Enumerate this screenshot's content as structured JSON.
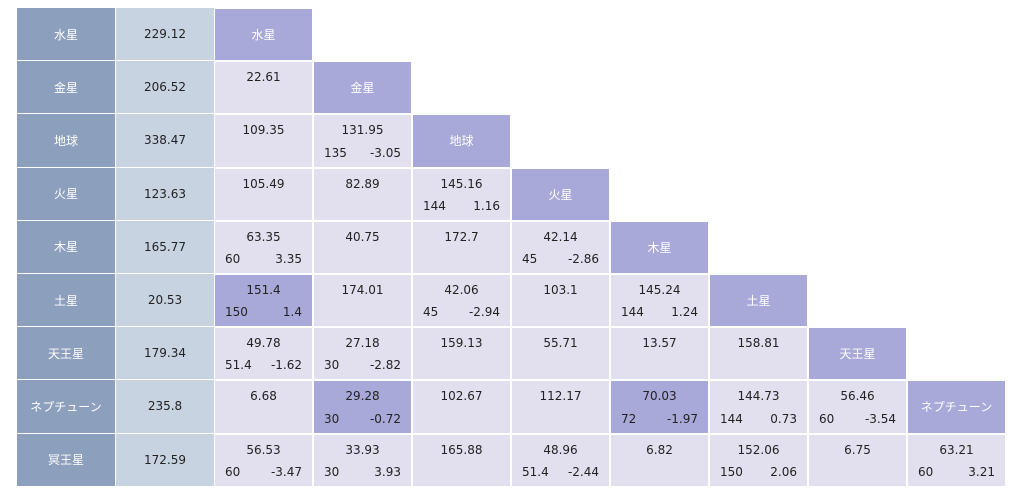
{
  "chart_data": {
    "type": "table",
    "planets": [
      "水星",
      "金星",
      "地球",
      "火星",
      "木星",
      "土星",
      "天王星",
      "ネプチューン",
      "冥王星"
    ],
    "row_totals": [
      "229.12",
      "206.52",
      "338.47",
      "123.63",
      "165.77",
      "20.53",
      "179.34",
      "235.8",
      "172.59"
    ],
    "diagonal_labels": [
      "水星",
      "金星",
      "地球",
      "火星",
      "木星",
      "土星",
      "天王星",
      "ネプチューン"
    ],
    "pairs": [
      {
        "row": 1,
        "col": 0,
        "value": "22.61",
        "a": "",
        "b": "",
        "highlight": false
      },
      {
        "row": 2,
        "col": 0,
        "value": "109.35",
        "a": "",
        "b": "",
        "highlight": false
      },
      {
        "row": 2,
        "col": 1,
        "value": "131.95",
        "a": "135",
        "b": "-3.05",
        "highlight": false
      },
      {
        "row": 3,
        "col": 0,
        "value": "105.49",
        "a": "",
        "b": "",
        "highlight": false
      },
      {
        "row": 3,
        "col": 1,
        "value": "82.89",
        "a": "",
        "b": "",
        "highlight": false
      },
      {
        "row": 3,
        "col": 2,
        "value": "145.16",
        "a": "144",
        "b": "1.16",
        "highlight": false
      },
      {
        "row": 4,
        "col": 0,
        "value": "63.35",
        "a": "60",
        "b": "3.35",
        "highlight": false
      },
      {
        "row": 4,
        "col": 1,
        "value": "40.75",
        "a": "",
        "b": "",
        "highlight": false
      },
      {
        "row": 4,
        "col": 2,
        "value": "172.7",
        "a": "",
        "b": "",
        "highlight": false
      },
      {
        "row": 4,
        "col": 3,
        "value": "42.14",
        "a": "45",
        "b": "-2.86",
        "highlight": false
      },
      {
        "row": 5,
        "col": 0,
        "value": "151.4",
        "a": "150",
        "b": "1.4",
        "highlight": true
      },
      {
        "row": 5,
        "col": 1,
        "value": "174.01",
        "a": "",
        "b": "",
        "highlight": false
      },
      {
        "row": 5,
        "col": 2,
        "value": "42.06",
        "a": "45",
        "b": "-2.94",
        "highlight": false
      },
      {
        "row": 5,
        "col": 3,
        "value": "103.1",
        "a": "",
        "b": "",
        "highlight": false
      },
      {
        "row": 5,
        "col": 4,
        "value": "145.24",
        "a": "144",
        "b": "1.24",
        "highlight": false
      },
      {
        "row": 6,
        "col": 0,
        "value": "49.78",
        "a": "51.4",
        "b": "-1.62",
        "highlight": false
      },
      {
        "row": 6,
        "col": 1,
        "value": "27.18",
        "a": "30",
        "b": "-2.82",
        "highlight": false
      },
      {
        "row": 6,
        "col": 2,
        "value": "159.13",
        "a": "",
        "b": "",
        "highlight": false
      },
      {
        "row": 6,
        "col": 3,
        "value": "55.71",
        "a": "",
        "b": "",
        "highlight": false
      },
      {
        "row": 6,
        "col": 4,
        "value": "13.57",
        "a": "",
        "b": "",
        "highlight": false
      },
      {
        "row": 6,
        "col": 5,
        "value": "158.81",
        "a": "",
        "b": "",
        "highlight": false
      },
      {
        "row": 7,
        "col": 0,
        "value": "6.68",
        "a": "",
        "b": "",
        "highlight": false
      },
      {
        "row": 7,
        "col": 1,
        "value": "29.28",
        "a": "30",
        "b": "-0.72",
        "highlight": true
      },
      {
        "row": 7,
        "col": 2,
        "value": "102.67",
        "a": "",
        "b": "",
        "highlight": false
      },
      {
        "row": 7,
        "col": 3,
        "value": "112.17",
        "a": "",
        "b": "",
        "highlight": false
      },
      {
        "row": 7,
        "col": 4,
        "value": "70.03",
        "a": "72",
        "b": "-1.97",
        "highlight": true
      },
      {
        "row": 7,
        "col": 5,
        "value": "144.73",
        "a": "144",
        "b": "0.73",
        "highlight": false
      },
      {
        "row": 7,
        "col": 6,
        "value": "56.46",
        "a": "60",
        "b": "-3.54",
        "highlight": false
      },
      {
        "row": 8,
        "col": 0,
        "value": "56.53",
        "a": "60",
        "b": "-3.47",
        "highlight": false
      },
      {
        "row": 8,
        "col": 1,
        "value": "33.93",
        "a": "30",
        "b": "3.93",
        "highlight": false
      },
      {
        "row": 8,
        "col": 2,
        "value": "165.88",
        "a": "",
        "b": "",
        "highlight": false
      },
      {
        "row": 8,
        "col": 3,
        "value": "48.96",
        "a": "51.4",
        "b": "-2.44",
        "highlight": false
      },
      {
        "row": 8,
        "col": 4,
        "value": "6.82",
        "a": "",
        "b": "",
        "highlight": false
      },
      {
        "row": 8,
        "col": 5,
        "value": "152.06",
        "a": "150",
        "b": "2.06",
        "highlight": false
      },
      {
        "row": 8,
        "col": 6,
        "value": "6.75",
        "a": "",
        "b": "",
        "highlight": false
      },
      {
        "row": 8,
        "col": 7,
        "value": "63.21",
        "a": "60",
        "b": "3.21",
        "highlight": false
      }
    ]
  },
  "colors": {
    "row_label_bg": "#8c9fbd",
    "row_total_bg": "#c8d3e2",
    "diagonal_bg": "#a9a9d9",
    "cell_bg": "#e2e0ef",
    "highlight_bg": "#a9a9d9"
  }
}
